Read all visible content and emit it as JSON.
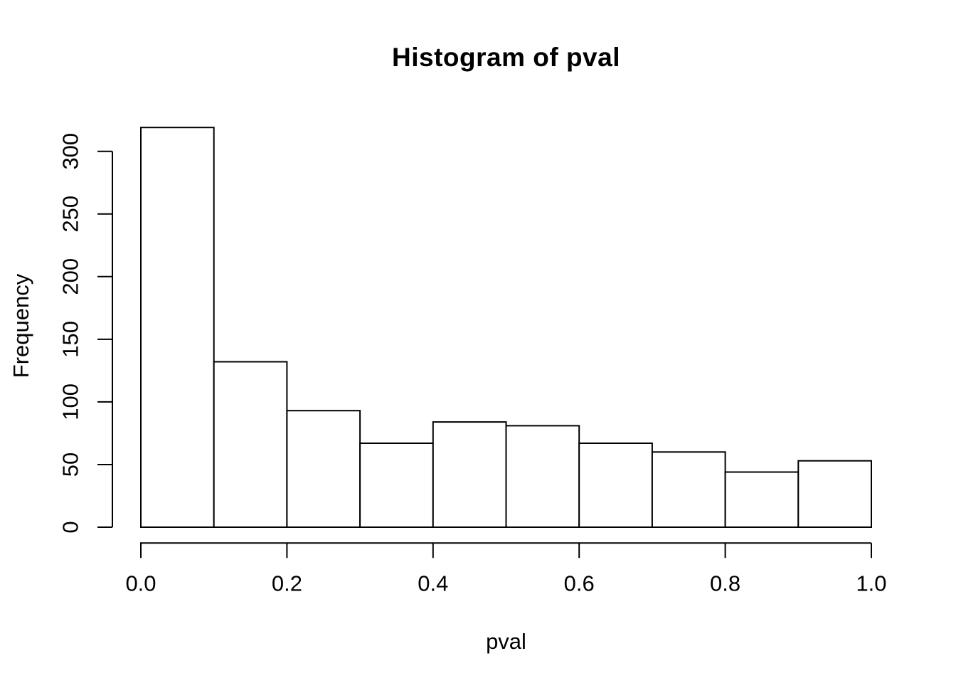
{
  "figure": {
    "background_color": "#ffffff",
    "foreground_color": "#000000"
  },
  "chart_data": {
    "type": "bar",
    "subtype": "histogram",
    "title": "Histogram of pval",
    "xlabel": "pval",
    "ylabel": "Frequency",
    "bin_edges": [
      0.0,
      0.1,
      0.2,
      0.3,
      0.4,
      0.5,
      0.6,
      0.7,
      0.8,
      0.9,
      1.0
    ],
    "values": [
      319,
      132,
      93,
      67,
      84,
      81,
      67,
      60,
      44,
      53
    ],
    "total_count": 1000,
    "xlim": [
      0,
      1
    ],
    "ylim": [
      0,
      300
    ],
    "x_ticks": [
      "0.0",
      "0.2",
      "0.4",
      "0.6",
      "0.8",
      "1.0"
    ],
    "x_tick_values": [
      0.0,
      0.2,
      0.4,
      0.6,
      0.8,
      1.0
    ],
    "y_ticks": [
      "0",
      "50",
      "100",
      "150",
      "200",
      "250",
      "300"
    ],
    "y_tick_values": [
      0,
      50,
      100,
      150,
      200,
      250,
      300
    ],
    "y_tick_label_rotation": -90,
    "bar_fill": "#ffffff",
    "bar_stroke": "#000000",
    "axis_color": "#000000",
    "grid": false,
    "legend": null
  }
}
